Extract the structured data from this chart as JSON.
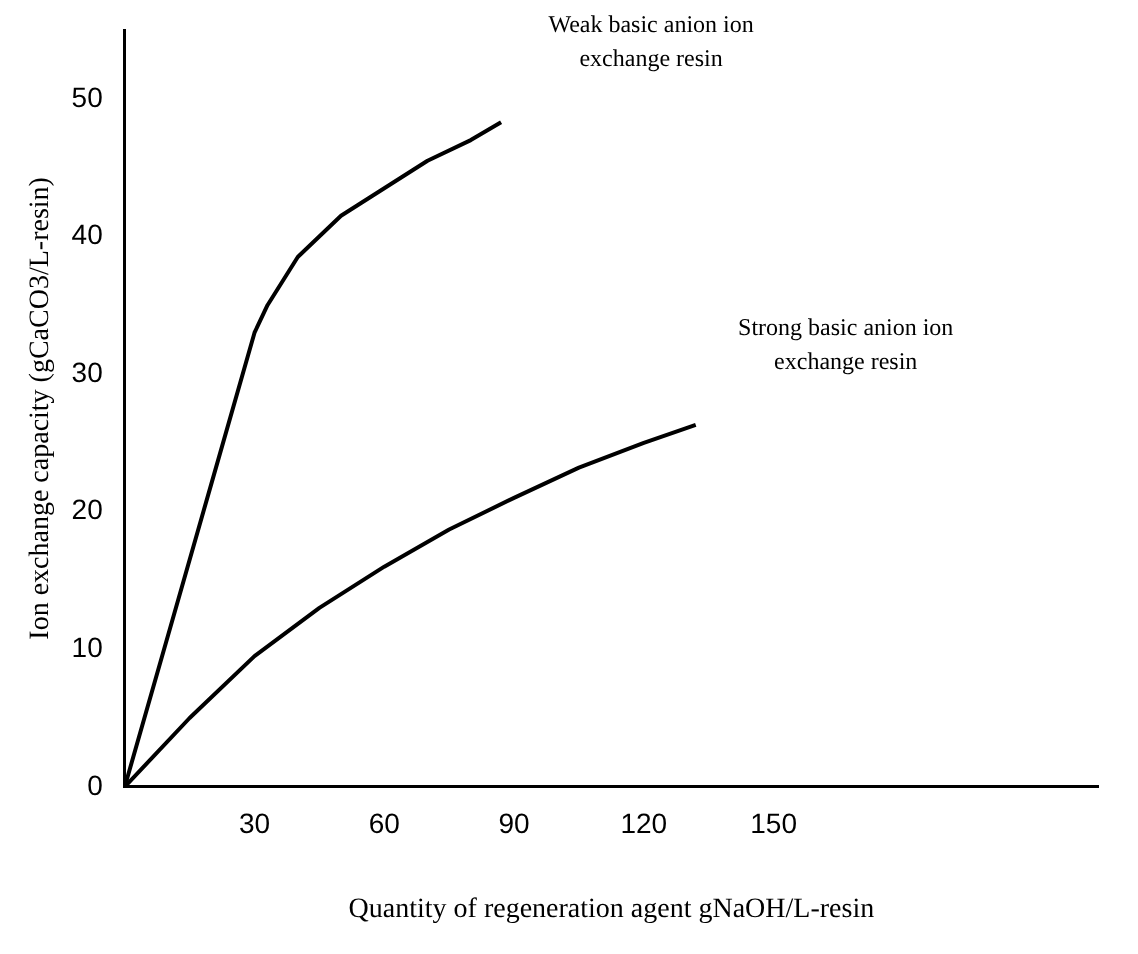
{
  "chart_data": {
    "type": "line",
    "xlabel": "Quantity of regeneration agent gNaOH/L-resin",
    "ylabel": "Ion exchange capacity (gCaCO3/L-resin)",
    "xlim": [
      0,
      225
    ],
    "xticks": [
      30,
      60,
      90,
      120,
      150
    ],
    "ylim": [
      0,
      55
    ],
    "yticks": [
      0,
      10,
      20,
      30,
      40,
      50
    ],
    "grid": false,
    "legend": false,
    "marker": "none",
    "line_style": "solid",
    "series": [
      {
        "name": "Weak basic anion ion exchange resin",
        "color": "#000000",
        "x": [
          0,
          10,
          20,
          30,
          33,
          40,
          50,
          60,
          70,
          80,
          87
        ],
        "values": [
          0,
          11,
          22,
          33,
          35,
          38.5,
          41.5,
          43.5,
          45.5,
          47,
          48.3
        ]
      },
      {
        "name": "Strong basic anion ion exchange resin",
        "color": "#000000",
        "x": [
          0,
          15,
          30,
          45,
          60,
          75,
          90,
          105,
          120,
          132
        ],
        "values": [
          0,
          5,
          9.5,
          13,
          16,
          18.7,
          21,
          23.2,
          25,
          26.3
        ]
      }
    ]
  }
}
